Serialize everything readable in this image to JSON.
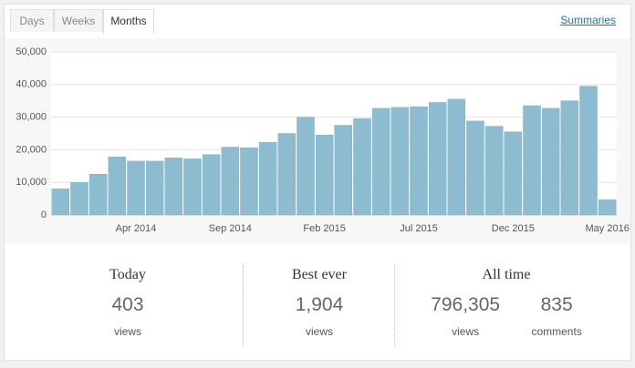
{
  "tabs": [
    "Days",
    "Weeks",
    "Months"
  ],
  "link": "Summaries",
  "chart_data": {
    "type": "bar",
    "color": "#8dbbcf",
    "categories": [
      null,
      null,
      null,
      null,
      "Apr 2014",
      null,
      null,
      null,
      null,
      "Sep 2014",
      null,
      null,
      null,
      null,
      "Feb 2015",
      null,
      null,
      null,
      null,
      "Jul 2015",
      null,
      null,
      null,
      null,
      "Dec 2015",
      null,
      null,
      null,
      null,
      "May 2016"
    ],
    "values": [
      8000,
      10000,
      12500,
      17800,
      16500,
      16500,
      17500,
      17200,
      18500,
      20800,
      20600,
      22300,
      25000,
      30000,
      24500,
      27500,
      29500,
      32700,
      33000,
      33200,
      34500,
      35500,
      28800,
      27200,
      25500,
      33500,
      32700,
      35000,
      39500,
      4700
    ],
    "ylim": [
      0,
      50000
    ],
    "yticks": [
      0,
      {
        "value": 10000,
        "label": "10,000"
      },
      {
        "value": 20000,
        "label": "20,000"
      },
      {
        "value": 30000,
        "label": "30,000"
      },
      {
        "value": 40000,
        "label": "40,000"
      },
      {
        "value": 50000,
        "label": "50,000"
      }
    ],
    "grid": true
  },
  "stats": [
    {
      "title": "Today",
      "items": [
        {
          "value": "403",
          "unit": "views"
        }
      ]
    },
    {
      "title": "Best ever",
      "items": [
        {
          "value": "1,904",
          "unit": "views"
        }
      ]
    },
    {
      "title": "All time",
      "items": [
        {
          "value": "796,305",
          "unit": "views"
        },
        {
          "value": "835",
          "unit": "comments"
        }
      ]
    }
  ]
}
